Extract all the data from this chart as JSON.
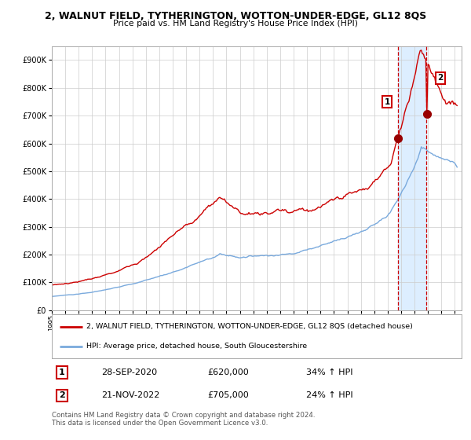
{
  "title": "2, WALNUT FIELD, TYTHERINGTON, WOTTON-UNDER-EDGE, GL12 8QS",
  "subtitle": "Price paid vs. HM Land Registry's House Price Index (HPI)",
  "legend_line1": "2, WALNUT FIELD, TYTHERINGTON, WOTTON-UNDER-EDGE, GL12 8QS (detached house)",
  "legend_line2": "HPI: Average price, detached house, South Gloucestershire",
  "sale1_date": "28-SEP-2020",
  "sale1_price": "£620,000",
  "sale1_hpi": "34% ↑ HPI",
  "sale2_date": "21-NOV-2022",
  "sale2_price": "£705,000",
  "sale2_hpi": "24% ↑ HPI",
  "footer": "Contains HM Land Registry data © Crown copyright and database right 2024.\nThis data is licensed under the Open Government Licence v3.0.",
  "red_color": "#cc0000",
  "blue_color": "#7aaadd",
  "highlight_bg": "#ddeeff",
  "marker_color": "#990000",
  "ylim": [
    0,
    950000
  ],
  "yticks": [
    0,
    100000,
    200000,
    300000,
    400000,
    500000,
    600000,
    700000,
    800000,
    900000
  ],
  "sale1_year": 2020.75,
  "sale2_year": 2022.88
}
